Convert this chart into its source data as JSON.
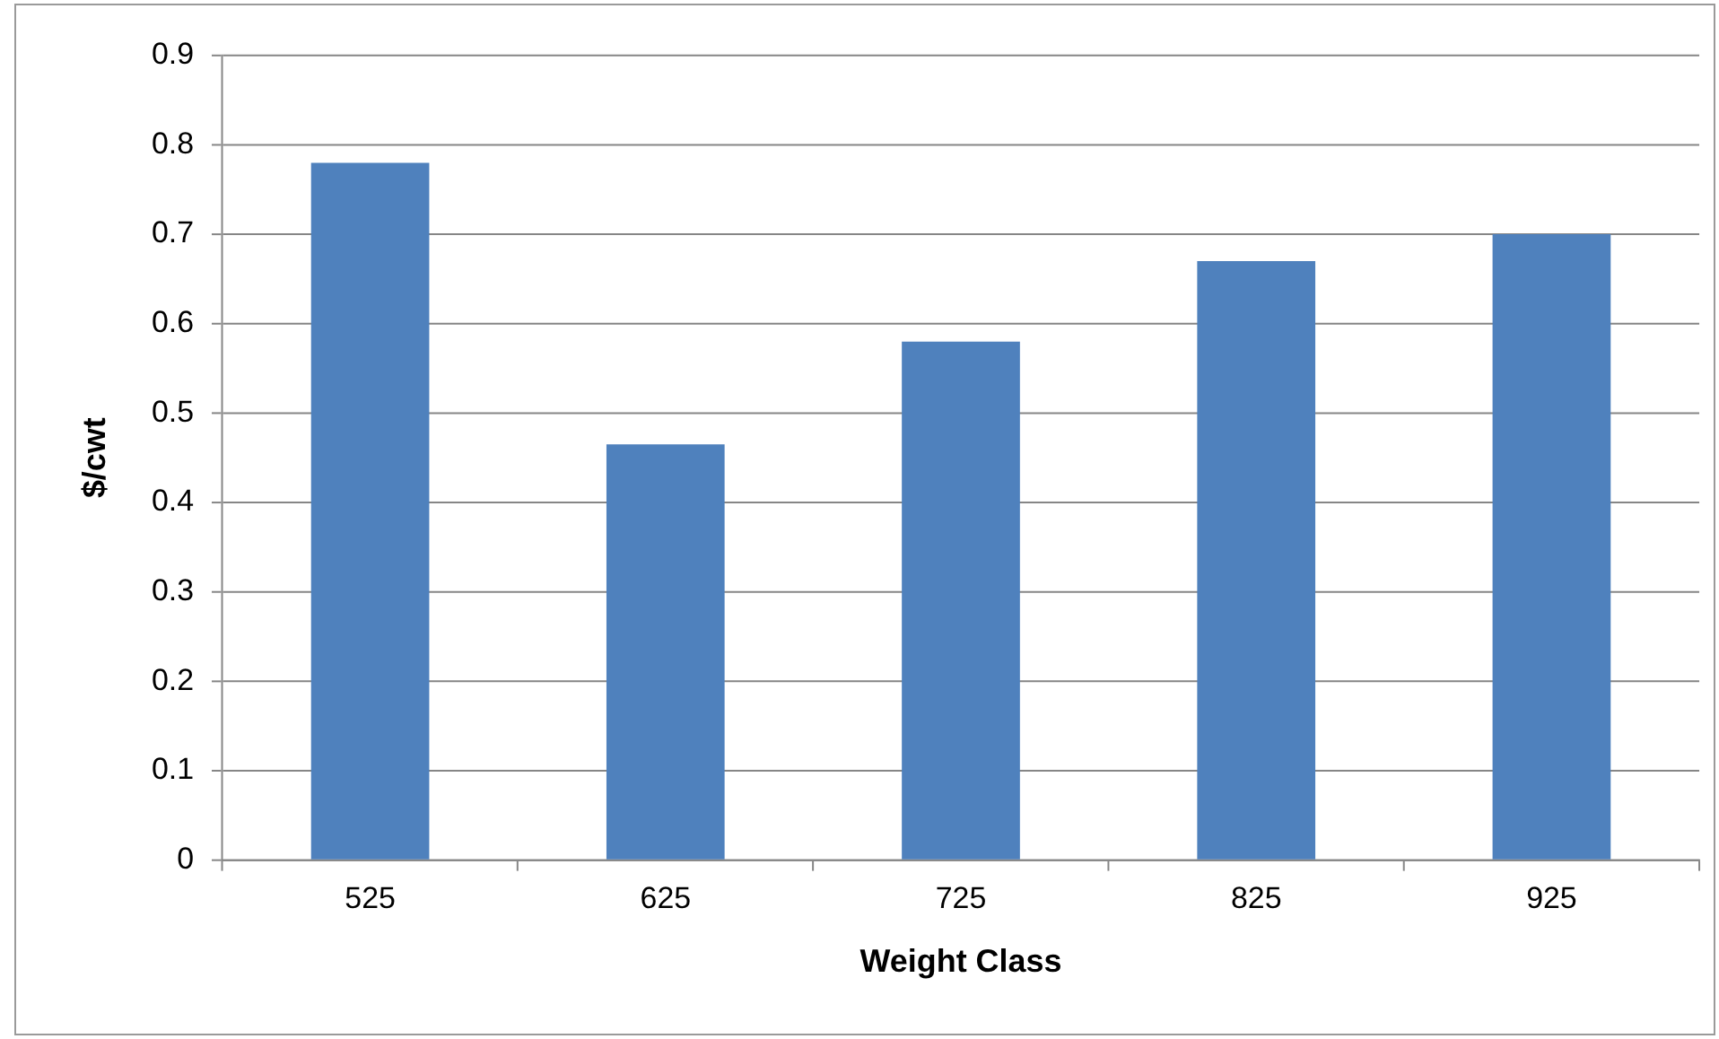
{
  "chart_data": {
    "type": "bar",
    "xlabel": "Weight Class",
    "ylabel": "$/cwt",
    "categories": [
      "525",
      "625",
      "725",
      "825",
      "925"
    ],
    "values": [
      0.78,
      0.465,
      0.58,
      0.67,
      0.7
    ],
    "color": "#4f81bd",
    "ylim": [
      0,
      0.9
    ],
    "yticks": [
      0,
      0.1,
      0.2,
      0.3,
      0.4,
      0.5,
      0.6,
      0.7,
      0.8,
      0.9
    ],
    "grid": "y",
    "legend": false
  }
}
